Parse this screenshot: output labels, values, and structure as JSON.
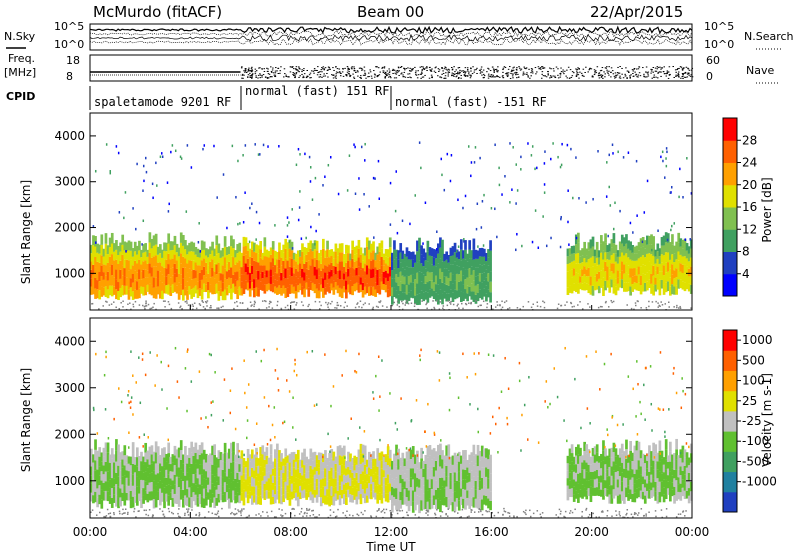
{
  "header": {
    "station": "McMurdo (fitACF)",
    "beam": "Beam 00",
    "date": "22/Apr/2015"
  },
  "noise_panel": {
    "left_label": "N.Sky",
    "right_label": "N.Search",
    "right_ticks": [
      "10^5",
      "10^0"
    ],
    "left_ticks": [
      "10^5",
      "10^0"
    ]
  },
  "freq_panel": {
    "left_label_line1": "Freq.",
    "left_label_line2": "[MHz]",
    "left_ticks": [
      "18",
      "8"
    ],
    "right_ticks": [
      "60",
      "0"
    ],
    "right_label": "Nave"
  },
  "cpid_panel": {
    "label": "CPID",
    "segments": [
      {
        "text": "spaletamode 9201 RF",
        "start_hour": 0
      },
      {
        "text": "normal (fast) 151 RF",
        "start_hour": 6
      },
      {
        "text": "normal (fast) -151 RF",
        "start_hour": 12
      }
    ]
  },
  "x_axis": {
    "label": "Time UT",
    "ticks": [
      "00:00",
      "04:00",
      "08:00",
      "12:00",
      "16:00",
      "20:00",
      "00:00"
    ],
    "range_hours": [
      0,
      24
    ]
  },
  "power_panel": {
    "ylabel": "Slant Range [km]",
    "yticks": [
      1000,
      2000,
      3000,
      4000
    ],
    "colorbar_label": "Power [dB]",
    "colorbar_ticks": [
      "28",
      "24",
      "20",
      "16",
      "12",
      "8",
      "4"
    ],
    "colors": [
      "#0000ff",
      "#2040c0",
      "#40a060",
      "#80c050",
      "#e0e000",
      "#ffa000",
      "#ff6000",
      "#ff0000"
    ]
  },
  "velocity_panel": {
    "ylabel": "Slant Range [km]",
    "yticks": [
      1000,
      2000,
      3000,
      4000
    ],
    "colorbar_label": "Velocity [m s-1]",
    "colorbar_ticks": [
      "1000",
      "500",
      "100",
      "25",
      "-25",
      "-100",
      "-500",
      "-1000"
    ],
    "colors": [
      "#2040c0",
      "#2080a0",
      "#40a060",
      "#60c030",
      "#c0c0c0",
      "#e0e000",
      "#ffa000",
      "#ff6000",
      "#ff0000"
    ]
  },
  "chart_data": [
    {
      "type": "heatmap",
      "title": "McMurdo (fitACF) Beam 00 22/Apr/2015",
      "xlabel": "Time UT",
      "ylabel": "Slant Range [km]",
      "xlim": [
        0,
        24
      ],
      "ylim": [
        200,
        4500
      ],
      "colorbar": "Power [dB]",
      "clim": [
        0,
        32
      ],
      "regions": [
        {
          "x_start": 0,
          "x_end": 6,
          "range_low": 500,
          "range_high": 1700,
          "value": 24
        },
        {
          "x_start": 6,
          "x_end": 12,
          "range_low": 550,
          "range_high": 1600,
          "value": 28
        },
        {
          "x_start": 12,
          "x_end": 16,
          "range_low": 400,
          "range_high": 1600,
          "value": 12
        },
        {
          "x_start": 19,
          "x_end": 24,
          "range_low": 600,
          "range_high": 1700,
          "value": 20
        }
      ]
    },
    {
      "type": "heatmap",
      "title": "McMurdo (fitACF) Beam 00 22/Apr/2015",
      "xlabel": "Time UT",
      "ylabel": "Slant Range [km]",
      "xlim": [
        0,
        24
      ],
      "ylim": [
        200,
        4500
      ],
      "colorbar": "Velocity [m s-1]",
      "clim": [
        -1000,
        1000
      ],
      "regions": [
        {
          "x_start": 0,
          "x_end": 6,
          "range_low": 500,
          "range_high": 1700,
          "value": -150
        },
        {
          "x_start": 6,
          "x_end": 12,
          "range_low": 550,
          "range_high": 1600,
          "value": 150
        },
        {
          "x_start": 12,
          "x_end": 16,
          "range_low": 400,
          "range_high": 1600,
          "value": -100
        },
        {
          "x_start": 19,
          "x_end": 24,
          "range_low": 600,
          "range_high": 1700,
          "value": -150
        }
      ]
    }
  ]
}
